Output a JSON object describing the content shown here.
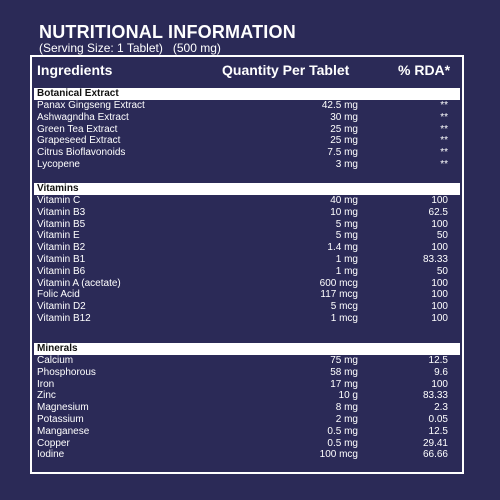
{
  "title": "NUTRITIONAL INFORMATION",
  "serving": {
    "size": "(Serving Size: 1 Tablet)",
    "mass": "(500 mg)"
  },
  "columns": {
    "ingredients": "Ingredients",
    "quantity": "Quantity Per Tablet",
    "rda": "% RDA*"
  },
  "colors": {
    "background": "#2b2a57",
    "text": "#ffffff",
    "section_bg": "#ffffff"
  },
  "sections": [
    {
      "name": "Botanical Extract",
      "rows": [
        {
          "name": "Panax Gingseng  Extract",
          "qty": "42.5 mg",
          "rda": "**"
        },
        {
          "name": "Ashwagndha Extract",
          "qty": "30 mg",
          "rda": "**"
        },
        {
          "name": "Green Tea Extract",
          "qty": "25 mg",
          "rda": "**"
        },
        {
          "name": "Grapeseed Extract",
          "qty": "25 mg",
          "rda": "**"
        },
        {
          "name": "Citrus Bioflavonoids",
          "qty": "7.5 mg",
          "rda": "**"
        },
        {
          "name": "Lycopene",
          "qty": "3 mg",
          "rda": "**"
        }
      ]
    },
    {
      "name": "Vitamins",
      "rows": [
        {
          "name": "Vitamin C",
          "qty": "40 mg",
          "rda": "100"
        },
        {
          "name": "Vitamin B3",
          "qty": "10 mg",
          "rda": "62.5"
        },
        {
          "name": "Vitamin B5",
          "qty": "5 mg",
          "rda": "100"
        },
        {
          "name": "Vitamin E",
          "qty": "5 mg",
          "rda": "50"
        },
        {
          "name": "Vitamin B2",
          "qty": "1.4 mg",
          "rda": "100"
        },
        {
          "name": "Vitamin  B1",
          "qty": "1 mg",
          "rda": "83.33"
        },
        {
          "name": "Vitamin  B6",
          "qty": "1 mg",
          "rda": "50"
        },
        {
          "name": "Vitamin A (acetate)",
          "qty": "600 mcg",
          "rda": "100"
        },
        {
          "name": "Folic Acid",
          "qty": "117 mcg",
          "rda": "100"
        },
        {
          "name": "Vitamin D2",
          "qty": "5 mcg",
          "rda": "100"
        },
        {
          "name": "Vitamin B12",
          "qty": "1 mcg",
          "rda": "100"
        }
      ]
    },
    {
      "name": "Minerals",
      "rows": [
        {
          "name": "Calcium",
          "qty": "75 mg",
          "rda": "12.5"
        },
        {
          "name": "Phosphorous",
          "qty": "58 mg",
          "rda": "9.6"
        },
        {
          "name": "Iron",
          "qty": "17 mg",
          "rda": "100"
        },
        {
          "name": "Zinc",
          "qty": "10 g",
          "rda": "83.33"
        },
        {
          "name": "Magnesium",
          "qty": "8 mg",
          "rda": "2.3"
        },
        {
          "name": "Potassium",
          "qty": "2 mg",
          "rda": "0.05"
        },
        {
          "name": "Manganese",
          "qty": "0.5 mg",
          "rda": "12.5"
        },
        {
          "name": "Copper",
          "qty": "0.5 mg",
          "rda": "29.41"
        },
        {
          "name": "Iodine",
          "qty": "100 mcg",
          "rda": "66.66"
        }
      ]
    }
  ]
}
